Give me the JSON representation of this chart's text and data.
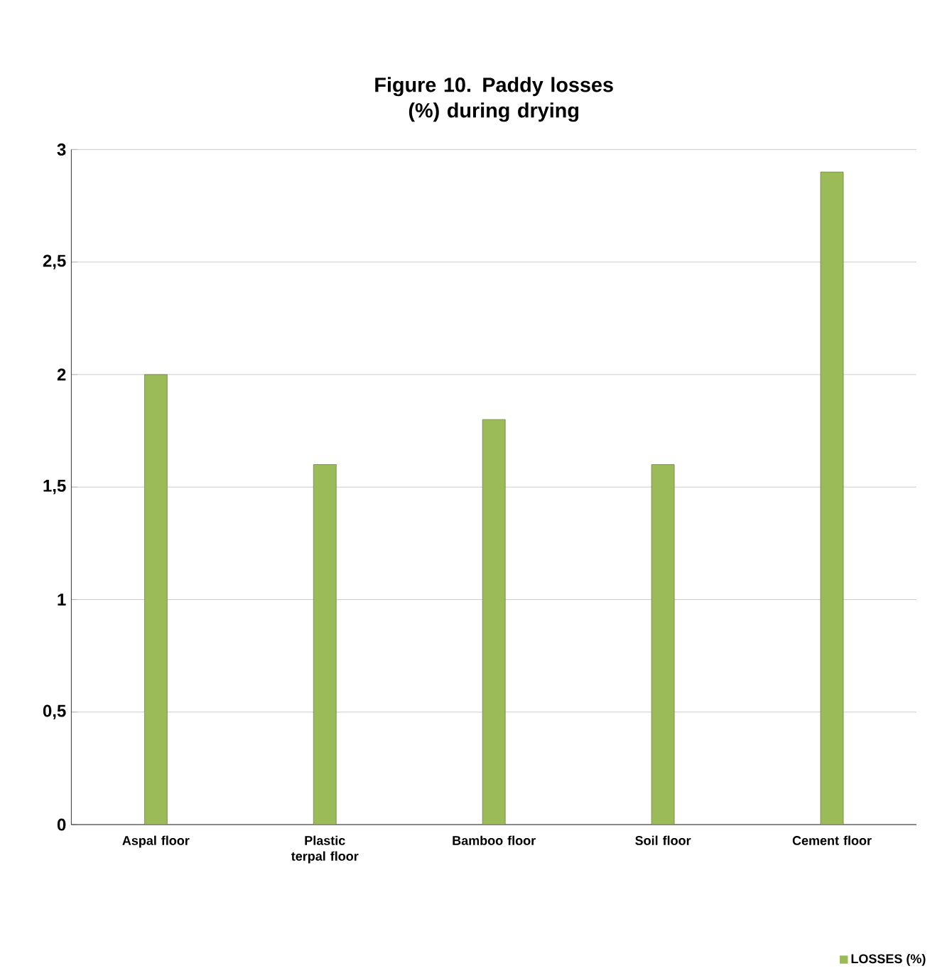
{
  "chart_data": {
    "type": "bar",
    "title": "Figure 10. Paddy losses (%) during drying",
    "categories": [
      "Aspal floor",
      "Plastic terpal floor",
      "Bamboo floor",
      "Soil floor",
      "Cement floor"
    ],
    "series": [
      {
        "name": "LOSSES (%)",
        "color": "#9bbb59",
        "values": [
          2.0,
          1.6,
          1.8,
          1.6,
          2.9
        ]
      }
    ],
    "ylim": [
      0,
      3
    ],
    "yticks": [
      0,
      {
        "value": 0.5,
        "label": "0,5"
      },
      1,
      {
        "value": 1.5,
        "label": "1,5"
      },
      2,
      {
        "value": 2.5,
        "label": "2,5"
      },
      3
    ],
    "grid": "y",
    "legend": "bottom right"
  }
}
